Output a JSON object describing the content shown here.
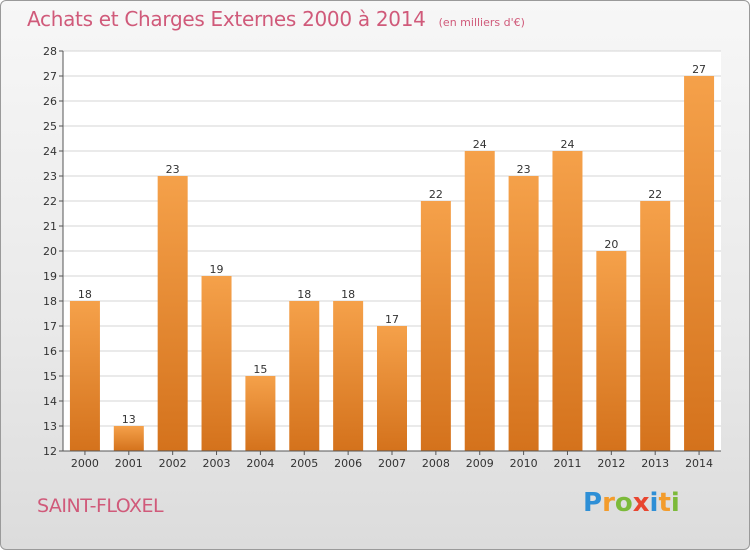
{
  "title": "Achats et Charges Externes 2000 à 2014",
  "subtitle": "(en milliers d'€)",
  "commune": "SAINT-FLOXEL",
  "logo": {
    "text": "Proxiti",
    "letters": [
      {
        "ch": "P",
        "color": "#2e8fd6"
      },
      {
        "ch": "r",
        "color": "#f39c2c"
      },
      {
        "ch": "o",
        "color": "#7cba3a"
      },
      {
        "ch": "x",
        "color": "#e8452f"
      },
      {
        "ch": "i",
        "color": "#2e8fd6"
      },
      {
        "ch": "t",
        "color": "#f39c2c"
      },
      {
        "ch": "i",
        "color": "#7cba3a"
      }
    ]
  },
  "colors": {
    "bar_top": "#f5a14a",
    "bar_bottom": "#d4721c",
    "title": "#d05a7a",
    "grid": "#d6d6d6"
  },
  "chart_data": {
    "type": "bar",
    "categories": [
      "2000",
      "2001",
      "2002",
      "2003",
      "2004",
      "2005",
      "2006",
      "2007",
      "2008",
      "2009",
      "2010",
      "2011",
      "2012",
      "2013",
      "2014"
    ],
    "values": [
      18,
      13,
      23,
      19,
      15,
      18,
      18,
      17,
      22,
      24,
      23,
      24,
      20,
      22,
      27
    ],
    "ylim": [
      12,
      28
    ],
    "yticks": [
      12,
      13,
      14,
      15,
      16,
      17,
      18,
      19,
      20,
      21,
      22,
      23,
      24,
      25,
      26,
      27,
      28
    ],
    "grid": true,
    "xlabel": "",
    "ylabel": ""
  }
}
